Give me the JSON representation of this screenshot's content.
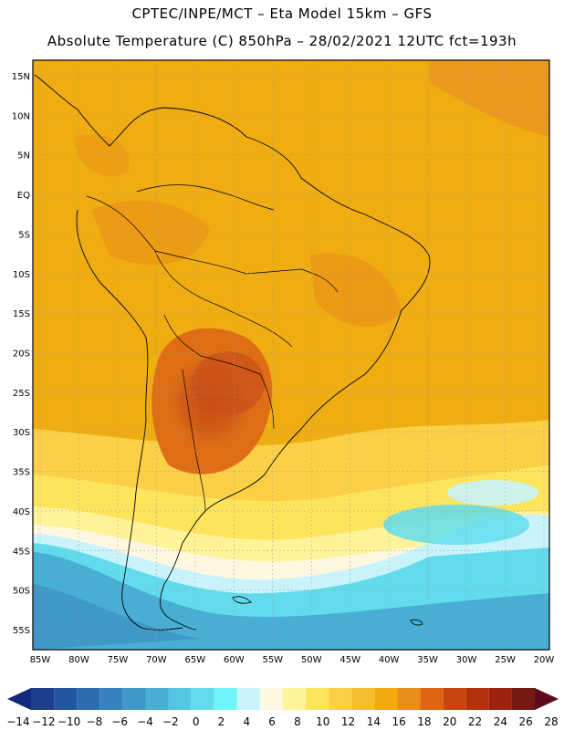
{
  "header": {
    "line1": "CPTEC/INPE/MCT –  Eta Model 15km – GFS",
    "line2": "Absolute Temperature (C) 850hPa – 28/02/2021 12UTC fct=193h"
  },
  "map": {
    "lat_labels": [
      "15N",
      "10N",
      "5N",
      "EQ",
      "5S",
      "10S",
      "15S",
      "20S",
      "25S",
      "30S",
      "35S",
      "40S",
      "45S",
      "50S",
      "55S"
    ],
    "lon_labels": [
      "85W",
      "80W",
      "75W",
      "70W",
      "65W",
      "60W",
      "55W",
      "50W",
      "45W",
      "40W",
      "35W",
      "30W",
      "25W",
      "20W"
    ],
    "lat_range": [
      15,
      -55
    ],
    "lon_range": [
      -85,
      -20
    ],
    "grid": "dotted"
  },
  "colorbar": {
    "labels": [
      "-14",
      "-12",
      "-10",
      "-8",
      "-6",
      "-4",
      "-2",
      "0",
      "2",
      "4",
      "6",
      "8",
      "10",
      "12",
      "14",
      "16",
      "18",
      "20",
      "22",
      "24",
      "26",
      "28"
    ],
    "colors": [
      "#1c3f8c",
      "#24559f",
      "#2d6cad",
      "#3783bd",
      "#3f98c8",
      "#48aed5",
      "#55c6e2",
      "#62dcec",
      "#6ff5fb",
      "#c8f3fb",
      "#fff7df",
      "#fff39a",
      "#fde45d",
      "#fbd047",
      "#f4be2f",
      "#f2a90d",
      "#ea8d18",
      "#df6513",
      "#c94410",
      "#b4310d",
      "#9c210e",
      "#741a12"
    ],
    "arrow_left": "#13297a",
    "arrow_right": "#5e0a1c"
  }
}
